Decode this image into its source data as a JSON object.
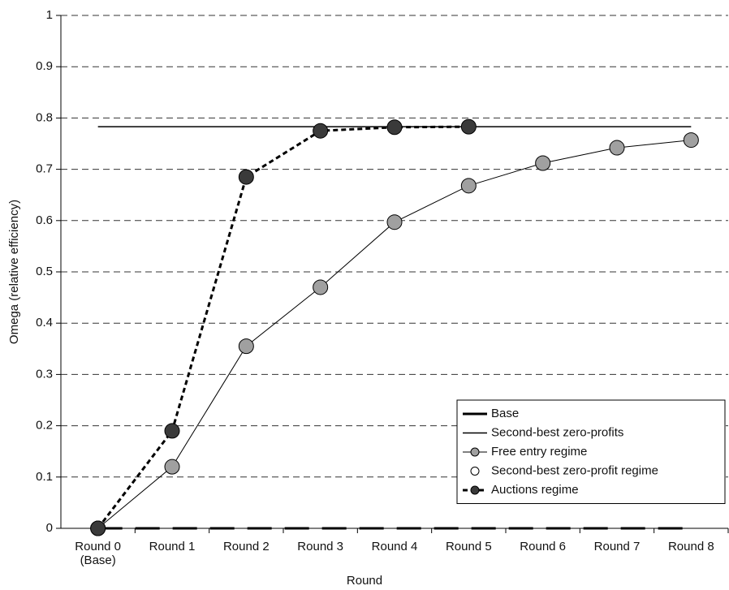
{
  "chart_data": {
    "type": "line",
    "xlabel": "Round",
    "ylabel": "Omega (relative efficiency)",
    "categories": [
      "Round 0\n(Base)",
      "Round 1",
      "Round 2",
      "Round 3",
      "Round 4",
      "Round 5",
      "Round 6",
      "Round 7",
      "Round 8"
    ],
    "ylim": [
      0,
      1
    ],
    "yticks": [
      0,
      0.1,
      0.2,
      0.3,
      0.4,
      0.5,
      0.6,
      0.7,
      0.8,
      0.9,
      1
    ],
    "grid": true,
    "legend": "lower right",
    "series": [
      {
        "name": "Base",
        "color": "#000000",
        "width": 3,
        "dash": "30 16",
        "marker": "none",
        "values": [
          0,
          0,
          0,
          0,
          0,
          0,
          0,
          0,
          0
        ]
      },
      {
        "name": "Second-best zero-profits",
        "color": "#000000",
        "width": 1.5,
        "marker": "none",
        "values": [
          0.783,
          0.783,
          0.783,
          0.783,
          0.783,
          0.783,
          0.783,
          0.783,
          0.783
        ]
      },
      {
        "name": "Free entry regime",
        "color": "#000000",
        "width": 1,
        "marker": "circle",
        "marker_fill": "#a0a0a0",
        "values": [
          0,
          0.12,
          0.355,
          0.47,
          0.597,
          0.668,
          0.712,
          0.742,
          0.757
        ]
      },
      {
        "name": "Second-best zero-profit regime",
        "color": "#000000",
        "width": 0,
        "marker": "circle",
        "marker_fill": "#ffffff",
        "values": [
          null,
          null,
          null,
          null,
          null,
          null,
          null,
          null,
          null
        ]
      },
      {
        "name": "Auctions regime",
        "color": "#000000",
        "width": 3,
        "dash": "6 4",
        "marker": "circle",
        "marker_fill": "#3a3a3a",
        "values": [
          0,
          0.19,
          0.685,
          0.775,
          0.782,
          0.783,
          null,
          null,
          null
        ]
      }
    ]
  }
}
